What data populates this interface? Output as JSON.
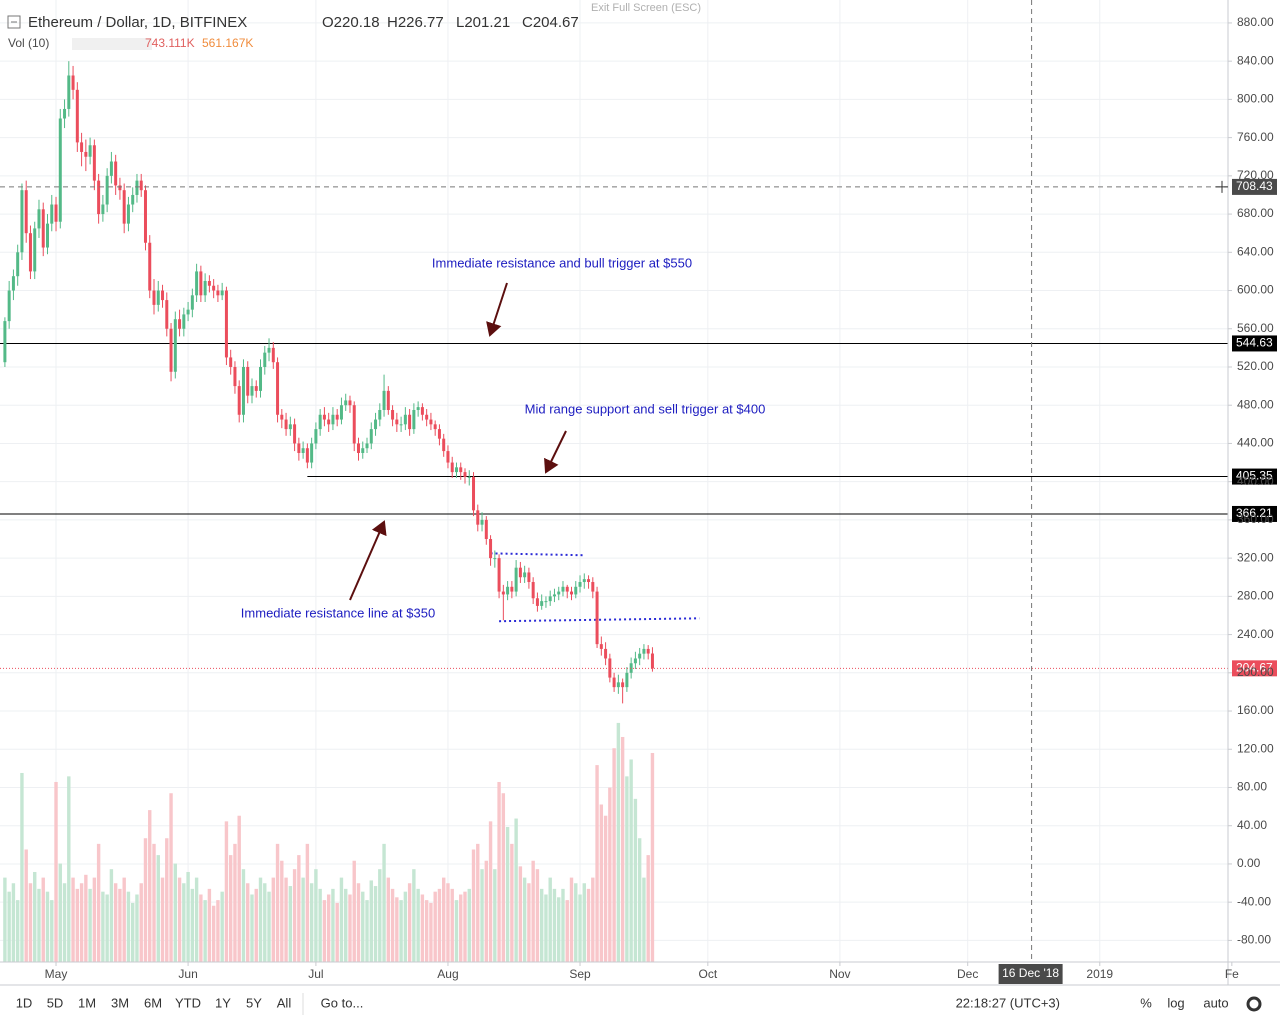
{
  "header": {
    "title": "Ethereum / Dollar, 1D, BITFINEX",
    "ohlc": [
      {
        "label": "O",
        "value": 220.18
      },
      {
        "label": "H",
        "value": 226.77
      },
      {
        "label": "L",
        "value": 201.21
      },
      {
        "label": "C",
        "value": 204.67
      }
    ],
    "volume": {
      "title": "Vol (10)",
      "value": "743.111K",
      "average": "561.167K"
    },
    "exit_fullscreen": "Exit Full Screen (ESC)"
  },
  "chart_data": {
    "type": "candlestick",
    "x": [
      108,
      109,
      110,
      111,
      112,
      113,
      114,
      115,
      116,
      117,
      118,
      119,
      120,
      121,
      122,
      123,
      124,
      125,
      126,
      127,
      128,
      129,
      130,
      131,
      132,
      133,
      134,
      135,
      136,
      137,
      138,
      139,
      140,
      141,
      142,
      143,
      144,
      145,
      146,
      147,
      148,
      149,
      150,
      151,
      152,
      153,
      154,
      155,
      156,
      157,
      158,
      159,
      160,
      161,
      162,
      163,
      164,
      165,
      166,
      167,
      168,
      169,
      170,
      171,
      172,
      173,
      174,
      175,
      176,
      177,
      178,
      179,
      180,
      181,
      182,
      183,
      184,
      185,
      186,
      187,
      188,
      189,
      190,
      191,
      192,
      193,
      194,
      195,
      196,
      197,
      198,
      199,
      200,
      201,
      202,
      203,
      204,
      205,
      206,
      207,
      208,
      209,
      210,
      211,
      212,
      213,
      214,
      215,
      216,
      217,
      218,
      219,
      220,
      221,
      222,
      223,
      224,
      225,
      226,
      227,
      228,
      229,
      230,
      231,
      232,
      233,
      234,
      235,
      236,
      237,
      238,
      239,
      240,
      241,
      242,
      243,
      244,
      245,
      246,
      247,
      248,
      249,
      250,
      251,
      252,
      253,
      254,
      255,
      256,
      257,
      258,
      259,
      260
    ],
    "open": [
      525,
      568,
      600,
      615,
      640,
      705,
      660,
      620,
      665,
      685,
      645,
      670,
      690,
      672,
      780,
      790,
      825,
      810,
      755,
      745,
      740,
      752,
      715,
      680,
      690,
      720,
      735,
      710,
      705,
      670,
      690,
      700,
      715,
      705,
      650,
      600,
      585,
      600,
      590,
      560,
      515,
      570,
      560,
      575,
      580,
      595,
      620,
      595,
      610,
      605,
      600,
      595,
      600,
      530,
      520,
      500,
      470,
      520,
      490,
      500,
      495,
      520,
      535,
      540,
      525,
      470,
      465,
      455,
      460,
      440,
      430,
      435,
      420,
      440,
      455,
      470,
      465,
      460,
      470,
      465,
      480,
      485,
      480,
      440,
      430,
      435,
      440,
      455,
      465,
      475,
      495,
      475,
      465,
      460,
      460,
      470,
      455,
      475,
      478,
      470,
      465,
      460,
      455,
      445,
      432,
      420,
      410,
      415,
      410,
      405,
      405,
      370,
      355,
      360,
      340,
      320,
      320,
      285,
      282,
      290,
      285,
      310,
      300,
      305,
      295,
      278,
      270,
      275,
      275,
      280,
      282,
      285,
      290,
      285,
      282,
      290,
      295,
      298,
      295,
      285,
      230,
      225,
      215,
      195,
      185,
      190,
      185,
      200,
      210,
      215,
      220,
      225,
      220.18
    ],
    "high": [
      572,
      610,
      622,
      648,
      712,
      715,
      668,
      672,
      695,
      692,
      680,
      700,
      698,
      790,
      800,
      840,
      835,
      818,
      765,
      758,
      760,
      758,
      722,
      700,
      728,
      745,
      742,
      718,
      712,
      698,
      708,
      722,
      722,
      710,
      658,
      612,
      610,
      606,
      598,
      566,
      578,
      580,
      582,
      588,
      602,
      628,
      626,
      618,
      616,
      612,
      606,
      608,
      604,
      538,
      526,
      506,
      528,
      526,
      508,
      506,
      528,
      542,
      550,
      546,
      530,
      476,
      472,
      468,
      466,
      446,
      442,
      440,
      446,
      462,
      476,
      478,
      472,
      478,
      476,
      488,
      492,
      490,
      484,
      446,
      442,
      446,
      462,
      472,
      482,
      512,
      500,
      480,
      472,
      468,
      478,
      476,
      482,
      484,
      482,
      476,
      472,
      464,
      460,
      450,
      438,
      426,
      420,
      420,
      414,
      412,
      410,
      376,
      368,
      364,
      344,
      328,
      324,
      292,
      296,
      296,
      318,
      316,
      312,
      310,
      300,
      284,
      282,
      280,
      286,
      288,
      290,
      296,
      292,
      290,
      296,
      302,
      304,
      302,
      300,
      290,
      238,
      232,
      220,
      200,
      198,
      194,
      206,
      216,
      222,
      226,
      230,
      229,
      226.77
    ],
    "low": [
      520,
      560,
      590,
      605,
      632,
      650,
      612,
      612,
      655,
      636,
      638,
      662,
      662,
      665,
      770,
      782,
      800,
      745,
      730,
      725,
      732,
      705,
      670,
      672,
      682,
      712,
      700,
      695,
      660,
      662,
      682,
      692,
      698,
      642,
      592,
      575,
      578,
      582,
      552,
      505,
      508,
      552,
      552,
      568,
      572,
      588,
      588,
      588,
      598,
      592,
      588,
      590,
      522,
      512,
      492,
      462,
      462,
      482,
      482,
      488,
      488,
      512,
      526,
      518,
      462,
      456,
      448,
      448,
      432,
      422,
      424,
      414,
      414,
      434,
      448,
      458,
      452,
      454,
      458,
      460,
      474,
      472,
      432,
      422,
      424,
      430,
      434,
      448,
      458,
      468,
      470,
      458,
      452,
      452,
      454,
      448,
      450,
      468,
      464,
      458,
      454,
      448,
      438,
      426,
      414,
      404,
      404,
      402,
      398,
      396,
      364,
      348,
      348,
      334,
      312,
      310,
      278,
      255,
      276,
      278,
      280,
      294,
      294,
      288,
      272,
      264,
      266,
      268,
      270,
      274,
      276,
      280,
      278,
      276,
      278,
      284,
      288,
      288,
      278,
      226,
      218,
      208,
      190,
      180,
      178,
      168,
      180,
      194,
      204,
      208,
      214,
      214,
      201.21
    ],
    "close": [
      568,
      600,
      615,
      640,
      705,
      660,
      620,
      665,
      685,
      645,
      670,
      690,
      672,
      780,
      790,
      825,
      810,
      755,
      745,
      740,
      752,
      715,
      680,
      690,
      720,
      735,
      710,
      705,
      670,
      690,
      700,
      715,
      705,
      650,
      600,
      585,
      600,
      590,
      560,
      515,
      570,
      560,
      575,
      580,
      595,
      620,
      595,
      610,
      605,
      600,
      595,
      600,
      530,
      520,
      500,
      470,
      520,
      490,
      500,
      495,
      520,
      535,
      540,
      525,
      470,
      465,
      455,
      460,
      440,
      430,
      435,
      420,
      440,
      455,
      470,
      465,
      460,
      470,
      465,
      480,
      485,
      480,
      440,
      430,
      435,
      440,
      455,
      465,
      475,
      495,
      475,
      465,
      460,
      460,
      470,
      455,
      475,
      478,
      470,
      465,
      460,
      455,
      445,
      432,
      420,
      410,
      415,
      410,
      405,
      405,
      370,
      355,
      360,
      340,
      320,
      320,
      285,
      282,
      290,
      285,
      310,
      300,
      305,
      295,
      278,
      270,
      275,
      275,
      280,
      282,
      285,
      290,
      285,
      282,
      290,
      295,
      298,
      295,
      285,
      230,
      225,
      215,
      195,
      185,
      190,
      185,
      200,
      210,
      215,
      220,
      225,
      220.18,
      204.67
    ],
    "volume": [
      300,
      250,
      280,
      220,
      672,
      400,
      280,
      320,
      260,
      300,
      250,
      220,
      640,
      350,
      280,
      660,
      300,
      260,
      280,
      310,
      260,
      300,
      420,
      250,
      240,
      330,
      280,
      260,
      300,
      250,
      210,
      240,
      280,
      440,
      540,
      420,
      380,
      300,
      440,
      600,
      350,
      300,
      280,
      320,
      260,
      300,
      240,
      220,
      260,
      200,
      220,
      250,
      500,
      380,
      420,
      520,
      330,
      280,
      240,
      260,
      300,
      280,
      250,
      300,
      420,
      360,
      300,
      270,
      330,
      380,
      300,
      420,
      280,
      330,
      260,
      220,
      240,
      260,
      210,
      300,
      260,
      240,
      360,
      280,
      250,
      220,
      290,
      270,
      330,
      420,
      300,
      260,
      230,
      220,
      250,
      280,
      330,
      260,
      240,
      220,
      210,
      250,
      260,
      300,
      280,
      260,
      220,
      240,
      250,
      260,
      400,
      420,
      330,
      360,
      500,
      330,
      640,
      600,
      480,
      420,
      510,
      340,
      300,
      280,
      360,
      330,
      260,
      240,
      300,
      260,
      230,
      260,
      220,
      300,
      280,
      240,
      280,
      260,
      300,
      700,
      560,
      520,
      620,
      760,
      850,
      800,
      660,
      720,
      580,
      440,
      300,
      380,
      743.111
    ],
    "volume_lim": [
      0,
      3420
    ],
    "up_color": "#53b987",
    "down_color": "#eb4d5c",
    "volume_up_color": "#c5e6d3",
    "volume_down_color": "#f8c6ca",
    "xlim": [
      106.85,
      395.1
    ],
    "xticks": [
      {
        "value": 120,
        "label": "May"
      },
      {
        "value": 151,
        "label": "Jun"
      },
      {
        "value": 181,
        "label": "Jul"
      },
      {
        "value": 212,
        "label": "Aug"
      },
      {
        "value": 243,
        "label": "Sep"
      },
      {
        "value": 273,
        "label": "Oct"
      },
      {
        "value": 304,
        "label": "Nov"
      },
      {
        "value": 334,
        "label": "Dec"
      },
      {
        "value": 365,
        "label": "2019"
      },
      {
        "value": 396,
        "label": "Fe"
      }
    ],
    "ylim": [
      -102.6,
      904
    ],
    "yticks": [
      {
        "value": 880,
        "label": "880.00"
      },
      {
        "value": 840,
        "label": "840.00"
      },
      {
        "value": 800,
        "label": "800.00"
      },
      {
        "value": 760,
        "label": "760.00"
      },
      {
        "value": 720,
        "label": "720.00"
      },
      {
        "value": 680,
        "label": "680.00"
      },
      {
        "value": 640,
        "label": "640.00"
      },
      {
        "value": 600,
        "label": "600.00"
      },
      {
        "value": 560,
        "label": "560.00"
      },
      {
        "value": 520,
        "label": "520.00"
      },
      {
        "value": 480,
        "label": "480.00"
      },
      {
        "value": 440,
        "label": "440.00"
      },
      {
        "value": 400,
        "label": "400.00"
      },
      {
        "value": 360,
        "label": "360.00"
      },
      {
        "value": 320,
        "label": "320.00"
      },
      {
        "value": 280,
        "label": "280.00"
      },
      {
        "value": 240,
        "label": "240.00"
      },
      {
        "value": 200,
        "label": "200.00"
      },
      {
        "value": 160,
        "label": "160.00"
      },
      {
        "value": 120,
        "label": "120.00"
      },
      {
        "value": 80,
        "label": "80.00"
      },
      {
        "value": 40,
        "label": "40.00"
      },
      {
        "value": 0,
        "label": "0.00"
      },
      {
        "value": -40,
        "label": "-40.00"
      },
      {
        "value": -80,
        "label": "-80.00"
      }
    ],
    "grid": true,
    "levels": [
      {
        "value": 544.63
      },
      {
        "value": 405.35,
        "start": 179
      },
      {
        "value": 366.21
      }
    ],
    "trendlines": [
      {
        "x": [
          222,
          244
        ],
        "y": [
          325,
          323
        ]
      },
      {
        "x": [
          224,
          271
        ],
        "y": [
          254,
          257
        ]
      }
    ],
    "crosshair": {
      "x": 349,
      "x_label": "16 Dec '18",
      "y": 708.43
    },
    "annotations": [
      "Immediate resistance and bull trigger at $550",
      "Mid range support and sell trigger at $400",
      "Immediate resistance line at $350"
    ]
  },
  "toolbar": {
    "ranges": [
      "1D",
      "5D",
      "1M",
      "3M",
      "6M",
      "YTD",
      "1Y",
      "5Y",
      "All"
    ],
    "goto": "Go to...",
    "clock": "22:18:27 (UTC+3)",
    "options": [
      "%",
      "log",
      "auto"
    ]
  }
}
